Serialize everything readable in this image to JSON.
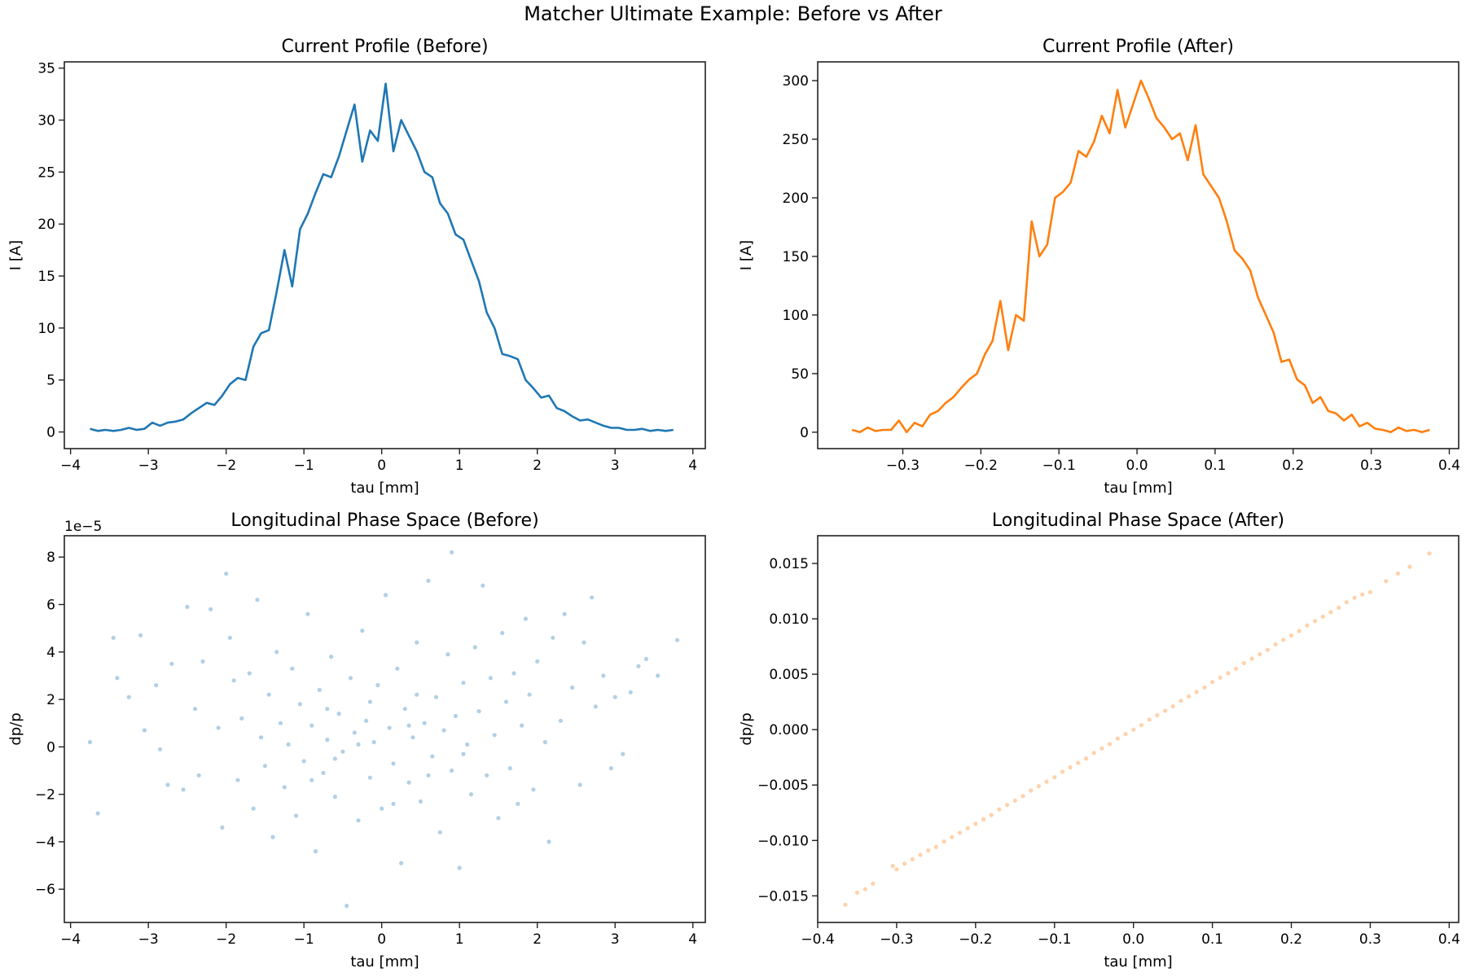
{
  "suptitle": "Matcher Ultimate Example: Before vs After",
  "chart_data": [
    {
      "type": "line",
      "title": "Current Profile (Before)",
      "xlabel": "tau [mm]",
      "ylabel": "I [A]",
      "xlim": [
        -4.08,
        4.16
      ],
      "ylim": [
        -1.6,
        35.6
      ],
      "xticks": [
        -4,
        -3,
        -2,
        -1,
        0,
        1,
        2,
        3,
        4
      ],
      "yticks": [
        0,
        5,
        10,
        15,
        20,
        25,
        30,
        35
      ],
      "color": "#1f77b4",
      "grid": false,
      "x": [
        -3.75,
        -3.65,
        -3.55,
        -3.45,
        -3.35,
        -3.25,
        -3.15,
        -3.05,
        -2.95,
        -2.85,
        -2.75,
        -2.65,
        -2.55,
        -2.45,
        -2.35,
        -2.25,
        -2.15,
        -2.05,
        -1.95,
        -1.85,
        -1.75,
        -1.65,
        -1.55,
        -1.45,
        -1.35,
        -1.25,
        -1.15,
        -1.05,
        -0.95,
        -0.85,
        -0.75,
        -0.65,
        -0.55,
        -0.45,
        -0.35,
        -0.25,
        -0.15,
        -0.05,
        0.05,
        0.15,
        0.25,
        0.35,
        0.45,
        0.55,
        0.65,
        0.75,
        0.85,
        0.95,
        1.05,
        1.15,
        1.25,
        1.35,
        1.45,
        1.55,
        1.65,
        1.75,
        1.85,
        1.95,
        2.05,
        2.15,
        2.25,
        2.35,
        2.45,
        2.55,
        2.65,
        2.75,
        2.85,
        2.95,
        3.05,
        3.15,
        3.25,
        3.35,
        3.45,
        3.55,
        3.65,
        3.75
      ],
      "y": [
        0.3,
        0.1,
        0.2,
        0.1,
        0.2,
        0.4,
        0.2,
        0.3,
        0.9,
        0.6,
        0.9,
        1.0,
        1.2,
        1.8,
        2.3,
        2.8,
        2.6,
        3.5,
        4.6,
        5.2,
        5.0,
        8.2,
        9.5,
        9.8,
        13.5,
        17.5,
        14.0,
        19.5,
        21.0,
        23.0,
        24.8,
        24.5,
        26.5,
        29.0,
        31.5,
        26.0,
        29.0,
        28.0,
        33.5,
        27.0,
        30.0,
        28.5,
        27.0,
        25.0,
        24.5,
        22.0,
        21.0,
        19.0,
        18.5,
        16.5,
        14.5,
        11.5,
        10.0,
        7.5,
        7.3,
        7.0,
        5.0,
        4.2,
        3.3,
        3.5,
        2.3,
        2.0,
        1.5,
        1.1,
        1.2,
        0.9,
        0.6,
        0.4,
        0.4,
        0.2,
        0.2,
        0.3,
        0.1,
        0.2,
        0.1,
        0.2
      ]
    },
    {
      "type": "line",
      "title": "Current Profile (After)",
      "xlabel": "tau [mm]",
      "ylabel": "I [A]",
      "xlim": [
        -0.409,
        0.412
      ],
      "ylim": [
        -14,
        316
      ],
      "xticks": [
        -0.3,
        -0.2,
        -0.1,
        0.0,
        0.1,
        0.2,
        0.3,
        0.4
      ],
      "yticks": [
        0,
        50,
        100,
        150,
        200,
        250,
        300
      ],
      "color": "#ff7f0e",
      "grid": false,
      "x": [
        -0.365,
        -0.355,
        -0.345,
        -0.335,
        -0.325,
        -0.315,
        -0.305,
        -0.295,
        -0.285,
        -0.275,
        -0.265,
        -0.255,
        -0.245,
        -0.235,
        -0.225,
        -0.215,
        -0.205,
        -0.195,
        -0.185,
        -0.175,
        -0.165,
        -0.155,
        -0.145,
        -0.135,
        -0.125,
        -0.115,
        -0.105,
        -0.095,
        -0.085,
        -0.075,
        -0.065,
        -0.055,
        -0.045,
        -0.035,
        -0.025,
        -0.015,
        -0.005,
        0.005,
        0.015,
        0.025,
        0.035,
        0.045,
        0.055,
        0.065,
        0.075,
        0.085,
        0.095,
        0.105,
        0.115,
        0.125,
        0.135,
        0.145,
        0.155,
        0.165,
        0.175,
        0.185,
        0.195,
        0.205,
        0.215,
        0.225,
        0.235,
        0.245,
        0.255,
        0.265,
        0.275,
        0.285,
        0.295,
        0.305,
        0.315,
        0.325,
        0.335,
        0.345,
        0.355,
        0.365,
        0.375
      ],
      "y": [
        2,
        0,
        4,
        1,
        2,
        2,
        10,
        0,
        8,
        5,
        15,
        18,
        25,
        30,
        38,
        45,
        50,
        66,
        78,
        112,
        70,
        100,
        95,
        180,
        150,
        160,
        200,
        205,
        213,
        240,
        235,
        248,
        270,
        255,
        292,
        260,
        280,
        300,
        285,
        268,
        260,
        250,
        255,
        232,
        262,
        220,
        210,
        200,
        180,
        155,
        148,
        138,
        115,
        100,
        85,
        60,
        62,
        45,
        40,
        25,
        30,
        18,
        16,
        10,
        15,
        5,
        8,
        3,
        2,
        0,
        4,
        1,
        2,
        0,
        2
      ]
    },
    {
      "type": "scatter",
      "title": "Longitudinal Phase Space (Before)",
      "xlabel": "tau [mm]",
      "ylabel": "dp/p",
      "y_offset_label": "1e−5",
      "xlim": [
        -4.08,
        4.16
      ],
      "ylim": [
        -7.4,
        8.9
      ],
      "xticks": [
        -4,
        -3,
        -2,
        -1,
        0,
        1,
        2,
        3,
        4
      ],
      "yticks": [
        -6,
        -4,
        -2,
        0,
        2,
        4,
        6,
        8
      ],
      "color": "#1f77b4",
      "alpha": 0.35,
      "grid": false,
      "points": [
        [
          -3.75,
          0.2
        ],
        [
          -3.65,
          -2.8
        ],
        [
          -3.45,
          4.6
        ],
        [
          -3.4,
          2.9
        ],
        [
          -3.25,
          2.1
        ],
        [
          -3.1,
          4.7
        ],
        [
          -3.05,
          0.7
        ],
        [
          -2.9,
          2.6
        ],
        [
          -2.85,
          -0.1
        ],
        [
          -2.75,
          -1.6
        ],
        [
          -2.7,
          3.5
        ],
        [
          -2.55,
          -1.8
        ],
        [
          -2.5,
          5.9
        ],
        [
          -2.4,
          1.6
        ],
        [
          -2.35,
          -1.2
        ],
        [
          -2.3,
          3.6
        ],
        [
          -2.2,
          5.8
        ],
        [
          -2.1,
          0.8
        ],
        [
          -2.05,
          -3.4
        ],
        [
          -2.0,
          7.3
        ],
        [
          -1.95,
          4.6
        ],
        [
          -1.9,
          2.8
        ],
        [
          -1.85,
          -1.4
        ],
        [
          -1.8,
          1.2
        ],
        [
          -1.7,
          3.1
        ],
        [
          -1.65,
          -2.6
        ],
        [
          -1.6,
          6.2
        ],
        [
          -1.55,
          0.4
        ],
        [
          -1.5,
          -0.8
        ],
        [
          -1.45,
          2.2
        ],
        [
          -1.4,
          -3.8
        ],
        [
          -1.35,
          4.0
        ],
        [
          -1.3,
          1.0
        ],
        [
          -1.25,
          -1.7
        ],
        [
          -1.2,
          0.1
        ],
        [
          -1.15,
          3.3
        ],
        [
          -1.1,
          -2.9
        ],
        [
          -1.05,
          1.8
        ],
        [
          -1.0,
          -0.6
        ],
        [
          -0.95,
          5.6
        ],
        [
          -0.9,
          0.9
        ],
        [
          -0.85,
          -4.4
        ],
        [
          -0.8,
          2.4
        ],
        [
          -0.75,
          -1.1
        ],
        [
          -0.7,
          0.3
        ],
        [
          -0.65,
          3.8
        ],
        [
          -0.6,
          -2.1
        ],
        [
          -0.55,
          1.4
        ],
        [
          -0.5,
          -0.2
        ],
        [
          -0.45,
          -6.7
        ],
        [
          -0.4,
          2.9
        ],
        [
          -0.35,
          0.6
        ],
        [
          -0.3,
          -3.1
        ],
        [
          -0.25,
          4.9
        ],
        [
          -0.2,
          1.1
        ],
        [
          -0.15,
          -1.3
        ],
        [
          -0.1,
          0.2
        ],
        [
          -0.05,
          2.6
        ],
        [
          0.0,
          -2.6
        ],
        [
          0.05,
          6.4
        ],
        [
          0.1,
          0.8
        ],
        [
          0.15,
          -0.7
        ],
        [
          0.2,
          3.3
        ],
        [
          0.25,
          -4.9
        ],
        [
          0.3,
          1.6
        ],
        [
          0.35,
          -1.5
        ],
        [
          0.4,
          0.4
        ],
        [
          0.45,
          4.4
        ],
        [
          0.5,
          -2.3
        ],
        [
          0.55,
          1.0
        ],
        [
          0.6,
          7.0
        ],
        [
          0.65,
          -0.4
        ],
        [
          0.7,
          2.1
        ],
        [
          0.75,
          -3.6
        ],
        [
          0.8,
          0.7
        ],
        [
          0.85,
          3.9
        ],
        [
          0.9,
          -1.0
        ],
        [
          0.95,
          1.3
        ],
        [
          1.0,
          -5.1
        ],
        [
          1.05,
          2.7
        ],
        [
          1.1,
          0.1
        ],
        [
          1.15,
          -2.0
        ],
        [
          1.2,
          4.2
        ],
        [
          1.25,
          1.5
        ],
        [
          1.3,
          6.8
        ],
        [
          1.35,
          -1.2
        ],
        [
          1.4,
          2.9
        ],
        [
          1.45,
          0.5
        ],
        [
          1.5,
          -3.0
        ],
        [
          1.55,
          4.8
        ],
        [
          1.6,
          1.9
        ],
        [
          1.65,
          -0.9
        ],
        [
          1.7,
          3.1
        ],
        [
          1.75,
          -2.4
        ],
        [
          1.8,
          0.9
        ],
        [
          1.85,
          5.4
        ],
        [
          1.9,
          2.2
        ],
        [
          1.95,
          -1.8
        ],
        [
          2.0,
          3.6
        ],
        [
          2.1,
          0.2
        ],
        [
          2.15,
          -4.0
        ],
        [
          2.2,
          4.6
        ],
        [
          2.3,
          1.1
        ],
        [
          2.35,
          5.6
        ],
        [
          2.45,
          2.5
        ],
        [
          2.55,
          -1.6
        ],
        [
          2.6,
          4.4
        ],
        [
          2.7,
          6.3
        ],
        [
          2.75,
          1.7
        ],
        [
          2.85,
          3.0
        ],
        [
          2.95,
          -0.9
        ],
        [
          3.0,
          2.1
        ],
        [
          3.1,
          -0.3
        ],
        [
          3.2,
          2.3
        ],
        [
          3.3,
          3.4
        ],
        [
          3.4,
          3.7
        ],
        [
          3.55,
          3.0
        ],
        [
          3.8,
          4.5
        ],
        [
          0.9,
          8.2
        ],
        [
          -0.3,
          0.1
        ],
        [
          0.35,
          0.9
        ],
        [
          -0.6,
          -0.5
        ],
        [
          0.6,
          -1.2
        ],
        [
          -0.15,
          1.9
        ],
        [
          0.15,
          -2.4
        ],
        [
          -0.9,
          -1.4
        ],
        [
          1.05,
          -0.3
        ],
        [
          -0.7,
          1.6
        ],
        [
          0.45,
          2.2
        ]
      ]
    },
    {
      "type": "scatter",
      "title": "Longitudinal Phase Space (After)",
      "xlabel": "tau [mm]",
      "ylabel": "dp/p",
      "xlim": [
        -0.4,
        0.412
      ],
      "ylim": [
        -0.0174,
        0.0175
      ],
      "xticks": [
        -0.4,
        -0.3,
        -0.2,
        -0.1,
        0.0,
        0.1,
        0.2,
        0.3,
        0.4
      ],
      "yticks": [
        -0.015,
        -0.01,
        -0.005,
        0.0,
        0.005,
        0.01,
        0.015
      ],
      "color": "#ff7f0e",
      "alpha": 0.35,
      "grid": false,
      "points": [
        [
          -0.365,
          -0.0158
        ],
        [
          -0.35,
          -0.0147
        ],
        [
          -0.34,
          -0.0144
        ],
        [
          -0.33,
          -0.0139
        ],
        [
          -0.305,
          -0.0123
        ],
        [
          -0.3,
          -0.0126
        ],
        [
          -0.29,
          -0.0121
        ],
        [
          -0.28,
          -0.0117
        ],
        [
          -0.27,
          -0.0113
        ],
        [
          -0.26,
          -0.0109
        ],
        [
          -0.25,
          -0.0106
        ],
        [
          -0.24,
          -0.0101
        ],
        [
          -0.23,
          -0.0097
        ],
        [
          -0.22,
          -0.0093
        ],
        [
          -0.21,
          -0.0089
        ],
        [
          -0.2,
          -0.0085
        ],
        [
          -0.19,
          -0.0081
        ],
        [
          -0.18,
          -0.0077
        ],
        [
          -0.17,
          -0.0072
        ],
        [
          -0.16,
          -0.0068
        ],
        [
          -0.15,
          -0.0064
        ],
        [
          -0.14,
          -0.006
        ],
        [
          -0.13,
          -0.0055
        ],
        [
          -0.12,
          -0.0051
        ],
        [
          -0.11,
          -0.0047
        ],
        [
          -0.1,
          -0.0043
        ],
        [
          -0.09,
          -0.0038
        ],
        [
          -0.08,
          -0.0034
        ],
        [
          -0.07,
          -0.003
        ],
        [
          -0.06,
          -0.0026
        ],
        [
          -0.05,
          -0.0021
        ],
        [
          -0.04,
          -0.0017
        ],
        [
          -0.03,
          -0.0013
        ],
        [
          -0.02,
          -0.0008
        ],
        [
          -0.01,
          -0.0004
        ],
        [
          0.0,
          0.0
        ],
        [
          0.01,
          0.0004
        ],
        [
          0.02,
          0.0009
        ],
        [
          0.03,
          0.0013
        ],
        [
          0.04,
          0.0017
        ],
        [
          0.05,
          0.0021
        ],
        [
          0.06,
          0.0026
        ],
        [
          0.07,
          0.003
        ],
        [
          0.08,
          0.0034
        ],
        [
          0.09,
          0.0038
        ],
        [
          0.1,
          0.0043
        ],
        [
          0.11,
          0.0047
        ],
        [
          0.12,
          0.0051
        ],
        [
          0.13,
          0.0055
        ],
        [
          0.14,
          0.006
        ],
        [
          0.15,
          0.0064
        ],
        [
          0.16,
          0.0068
        ],
        [
          0.17,
          0.0072
        ],
        [
          0.18,
          0.0077
        ],
        [
          0.19,
          0.0081
        ],
        [
          0.2,
          0.0085
        ],
        [
          0.21,
          0.0089
        ],
        [
          0.22,
          0.0094
        ],
        [
          0.23,
          0.0098
        ],
        [
          0.24,
          0.0102
        ],
        [
          0.25,
          0.0106
        ],
        [
          0.26,
          0.011
        ],
        [
          0.27,
          0.0115
        ],
        [
          0.28,
          0.0119
        ],
        [
          0.29,
          0.0122
        ],
        [
          0.3,
          0.0124
        ],
        [
          0.32,
          0.0134
        ],
        [
          0.335,
          0.0141
        ],
        [
          0.35,
          0.0147
        ],
        [
          0.375,
          0.0159
        ]
      ]
    }
  ]
}
